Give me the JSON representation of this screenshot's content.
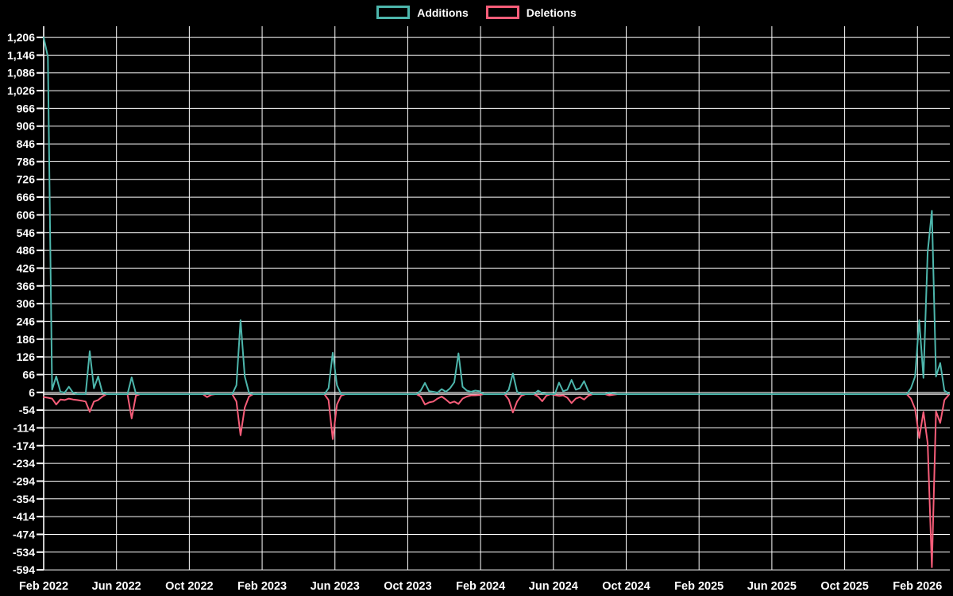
{
  "legend": {
    "items": [
      {
        "label": "Additions",
        "color": "#4db6ac"
      },
      {
        "label": "Deletions",
        "color": "#f75d79"
      }
    ]
  },
  "chart_data": {
    "type": "line",
    "title": "",
    "xlabel": "",
    "ylabel": "",
    "grid": true,
    "legend_position": "top-center",
    "background_color": "#000000",
    "gridline_color": "#ffffff",
    "tick_label_color": "#ffffff",
    "zero_line_color": "#e8e8e8",
    "x_axis": {
      "unit": "weeks since Feb 2022",
      "tick_labels": [
        "Feb 2022",
        "Jun 2022",
        "Oct 2022",
        "Feb 2023",
        "Jun 2023",
        "Oct 2023",
        "Feb 2024",
        "Jun 2024",
        "Oct 2024",
        "Feb 2025",
        "Jun 2025",
        "Oct 2025",
        "Feb 2026"
      ],
      "weeks_per_tick": 17.381,
      "total_weeks": 216
    },
    "y_axis": {
      "min": -594,
      "max": 1206,
      "step": 60
    },
    "series": [
      {
        "name": "Additions",
        "color": "#4db6ac",
        "points": [
          [
            0,
            1206
          ],
          [
            1,
            1140
          ],
          [
            2,
            15
          ],
          [
            3,
            60
          ],
          [
            4,
            8
          ],
          [
            5,
            5
          ],
          [
            6,
            25
          ],
          [
            7,
            5
          ],
          [
            8,
            0
          ],
          [
            10,
            0
          ],
          [
            11,
            145
          ],
          [
            12,
            20
          ],
          [
            13,
            60
          ],
          [
            14,
            5
          ],
          [
            15,
            0
          ],
          [
            20,
            0
          ],
          [
            21,
            57
          ],
          [
            22,
            2
          ],
          [
            23,
            0
          ],
          [
            38,
            0
          ],
          [
            39,
            2
          ],
          [
            40,
            0
          ],
          [
            45,
            0
          ],
          [
            46,
            30
          ],
          [
            47,
            250
          ],
          [
            48,
            60
          ],
          [
            49,
            5
          ],
          [
            50,
            0
          ],
          [
            67,
            0
          ],
          [
            68,
            20
          ],
          [
            69,
            140
          ],
          [
            70,
            30
          ],
          [
            71,
            0
          ],
          [
            89,
            0
          ],
          [
            90,
            12
          ],
          [
            91,
            38
          ],
          [
            92,
            10
          ],
          [
            93,
            8
          ],
          [
            94,
            5
          ],
          [
            95,
            17
          ],
          [
            96,
            8
          ],
          [
            97,
            20
          ],
          [
            98,
            40
          ],
          [
            99,
            138
          ],
          [
            100,
            25
          ],
          [
            101,
            12
          ],
          [
            102,
            8
          ],
          [
            103,
            12
          ],
          [
            104,
            10
          ],
          [
            105,
            0
          ],
          [
            110,
            0
          ],
          [
            111,
            15
          ],
          [
            112,
            70
          ],
          [
            113,
            8
          ],
          [
            114,
            0
          ],
          [
            117,
            0
          ],
          [
            118,
            12
          ],
          [
            119,
            3
          ],
          [
            120,
            0
          ],
          [
            122,
            0
          ],
          [
            123,
            39
          ],
          [
            124,
            10
          ],
          [
            125,
            15
          ],
          [
            126,
            48
          ],
          [
            127,
            15
          ],
          [
            128,
            20
          ],
          [
            129,
            44
          ],
          [
            130,
            10
          ],
          [
            131,
            0
          ],
          [
            134,
            0
          ],
          [
            135,
            6
          ],
          [
            136,
            2
          ],
          [
            137,
            0
          ],
          [
            206,
            0
          ],
          [
            207,
            20
          ],
          [
            208,
            60
          ],
          [
            209,
            250
          ],
          [
            210,
            55
          ],
          [
            211,
            480
          ],
          [
            212,
            620
          ],
          [
            213,
            60
          ],
          [
            214,
            105
          ],
          [
            215,
            12
          ],
          [
            216,
            2
          ]
        ]
      },
      {
        "name": "Deletions",
        "color": "#f75d79",
        "points": [
          [
            0,
            -10
          ],
          [
            1,
            -12
          ],
          [
            2,
            -15
          ],
          [
            3,
            -35
          ],
          [
            4,
            -18
          ],
          [
            5,
            -20
          ],
          [
            6,
            -15
          ],
          [
            7,
            -18
          ],
          [
            8,
            -20
          ],
          [
            9,
            -22
          ],
          [
            10,
            -25
          ],
          [
            11,
            -60
          ],
          [
            12,
            -25
          ],
          [
            13,
            -20
          ],
          [
            14,
            -8
          ],
          [
            15,
            0
          ],
          [
            20,
            0
          ],
          [
            21,
            -82
          ],
          [
            22,
            -5
          ],
          [
            23,
            0
          ],
          [
            38,
            0
          ],
          [
            39,
            -10
          ],
          [
            40,
            -2
          ],
          [
            41,
            0
          ],
          [
            45,
            0
          ],
          [
            46,
            -25
          ],
          [
            47,
            -139
          ],
          [
            48,
            -45
          ],
          [
            49,
            -8
          ],
          [
            50,
            0
          ],
          [
            67,
            0
          ],
          [
            68,
            -20
          ],
          [
            69,
            -152
          ],
          [
            70,
            -35
          ],
          [
            71,
            -5
          ],
          [
            72,
            0
          ],
          [
            89,
            0
          ],
          [
            90,
            -8
          ],
          [
            91,
            -35
          ],
          [
            92,
            -28
          ],
          [
            93,
            -25
          ],
          [
            94,
            -15
          ],
          [
            95,
            -8
          ],
          [
            96,
            -18
          ],
          [
            97,
            -30
          ],
          [
            98,
            -25
          ],
          [
            99,
            -33
          ],
          [
            100,
            -15
          ],
          [
            101,
            -8
          ],
          [
            102,
            -4
          ],
          [
            103,
            -4
          ],
          [
            104,
            -3
          ],
          [
            105,
            0
          ],
          [
            110,
            0
          ],
          [
            111,
            -18
          ],
          [
            112,
            -62
          ],
          [
            113,
            -25
          ],
          [
            114,
            -5
          ],
          [
            115,
            0
          ],
          [
            117,
            0
          ],
          [
            118,
            -8
          ],
          [
            119,
            -24
          ],
          [
            120,
            -5
          ],
          [
            121,
            0
          ],
          [
            122,
            -3
          ],
          [
            123,
            -6
          ],
          [
            124,
            -4
          ],
          [
            125,
            -12
          ],
          [
            126,
            -30
          ],
          [
            127,
            -15
          ],
          [
            128,
            -10
          ],
          [
            129,
            -18
          ],
          [
            130,
            -5
          ],
          [
            131,
            0
          ],
          [
            134,
            0
          ],
          [
            135,
            -4
          ],
          [
            136,
            -2
          ],
          [
            137,
            0
          ],
          [
            206,
            0
          ],
          [
            207,
            -15
          ],
          [
            208,
            -50
          ],
          [
            209,
            -148
          ],
          [
            210,
            -60
          ],
          [
            211,
            -166
          ],
          [
            212,
            -585
          ],
          [
            213,
            -58
          ],
          [
            214,
            -97
          ],
          [
            215,
            -20
          ],
          [
            216,
            -3
          ]
        ]
      }
    ]
  }
}
